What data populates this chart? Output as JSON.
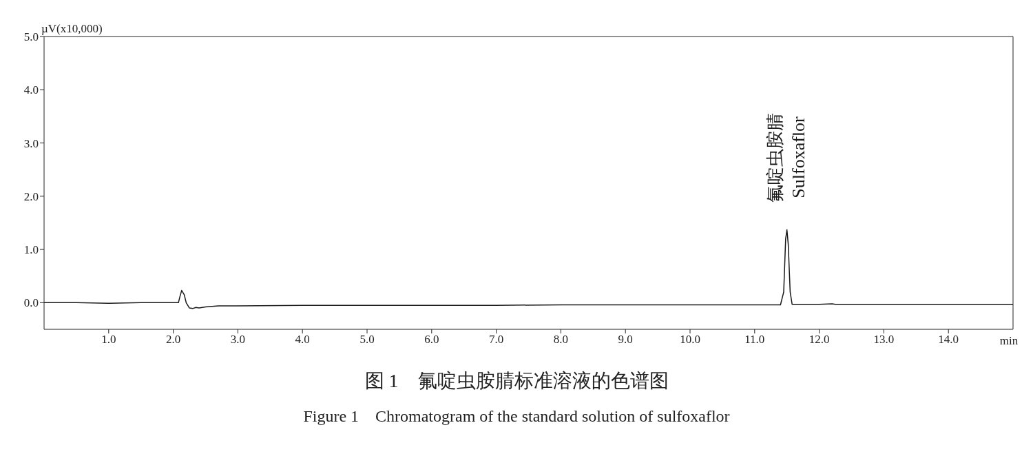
{
  "chart_data": {
    "type": "line",
    "title": "图 1　氟啶虫胺腈标准溶液的色谱图",
    "subtitle": "Figure 1　Chromatogram of the standard solution of sulfoxaflor",
    "xlabel": "min",
    "ylabel": "µV(x10,000)",
    "annotations": [
      {
        "text": "氟啶虫胺腈\nSulfoxaflor",
        "x": 11.5,
        "y": 1.37
      }
    ],
    "x": [
      0,
      0.5,
      1.0,
      1.5,
      2.0,
      2.08,
      2.1,
      2.13,
      2.17,
      2.2,
      2.25,
      2.3,
      2.35,
      2.4,
      2.5,
      2.7,
      3.0,
      4.0,
      5.0,
      6.0,
      7.0,
      8.0,
      9.0,
      10.0,
      11.0,
      11.4,
      11.45,
      11.48,
      11.5,
      11.52,
      11.55,
      11.58,
      12.0,
      12.2,
      12.25,
      13.0,
      14.0,
      15.0
    ],
    "series": [
      {
        "color": "#1a1a1a",
        "values": [
          0,
          0,
          -0.01,
          0,
          0,
          0,
          0.1,
          0.23,
          0.15,
          0.0,
          -0.1,
          -0.11,
          -0.09,
          -0.1,
          -0.08,
          -0.06,
          -0.06,
          -0.05,
          -0.05,
          -0.05,
          -0.05,
          -0.04,
          -0.04,
          -0.04,
          -0.04,
          -0.04,
          0.2,
          1.2,
          1.37,
          1.1,
          0.2,
          -0.03,
          -0.03,
          -0.02,
          -0.03,
          -0.03,
          -0.03,
          -0.03
        ]
      }
    ],
    "xlim": [
      0,
      15
    ],
    "xticks": [
      {
        "value": 1,
        "label": "1.0"
      },
      {
        "value": 2,
        "label": "2.0"
      },
      {
        "value": 3,
        "label": "3.0"
      },
      {
        "value": 4,
        "label": "4.0"
      },
      {
        "value": 5,
        "label": "5.0"
      },
      {
        "value": 6,
        "label": "6.0"
      },
      {
        "value": 7,
        "label": "7.0"
      },
      {
        "value": 8,
        "label": "8.0"
      },
      {
        "value": 9,
        "label": "9.0"
      },
      {
        "value": 10,
        "label": "10.0"
      },
      {
        "value": 11,
        "label": "11.0"
      },
      {
        "value": 12,
        "label": "12.0"
      },
      {
        "value": 13,
        "label": "13.0"
      },
      {
        "value": 14,
        "label": "14.0"
      }
    ],
    "ylim": [
      -0.5,
      5
    ],
    "yticks": [
      {
        "value": 0,
        "label": "0.0"
      },
      {
        "value": 1,
        "label": "1.0"
      },
      {
        "value": 2,
        "label": "2.0"
      },
      {
        "value": 3,
        "label": "3.0"
      },
      {
        "value": 4,
        "label": "4.0"
      },
      {
        "value": 5,
        "label": "5.0"
      }
    ],
    "grid": false,
    "legend": false,
    "marker": "none",
    "line_style": "solid"
  }
}
